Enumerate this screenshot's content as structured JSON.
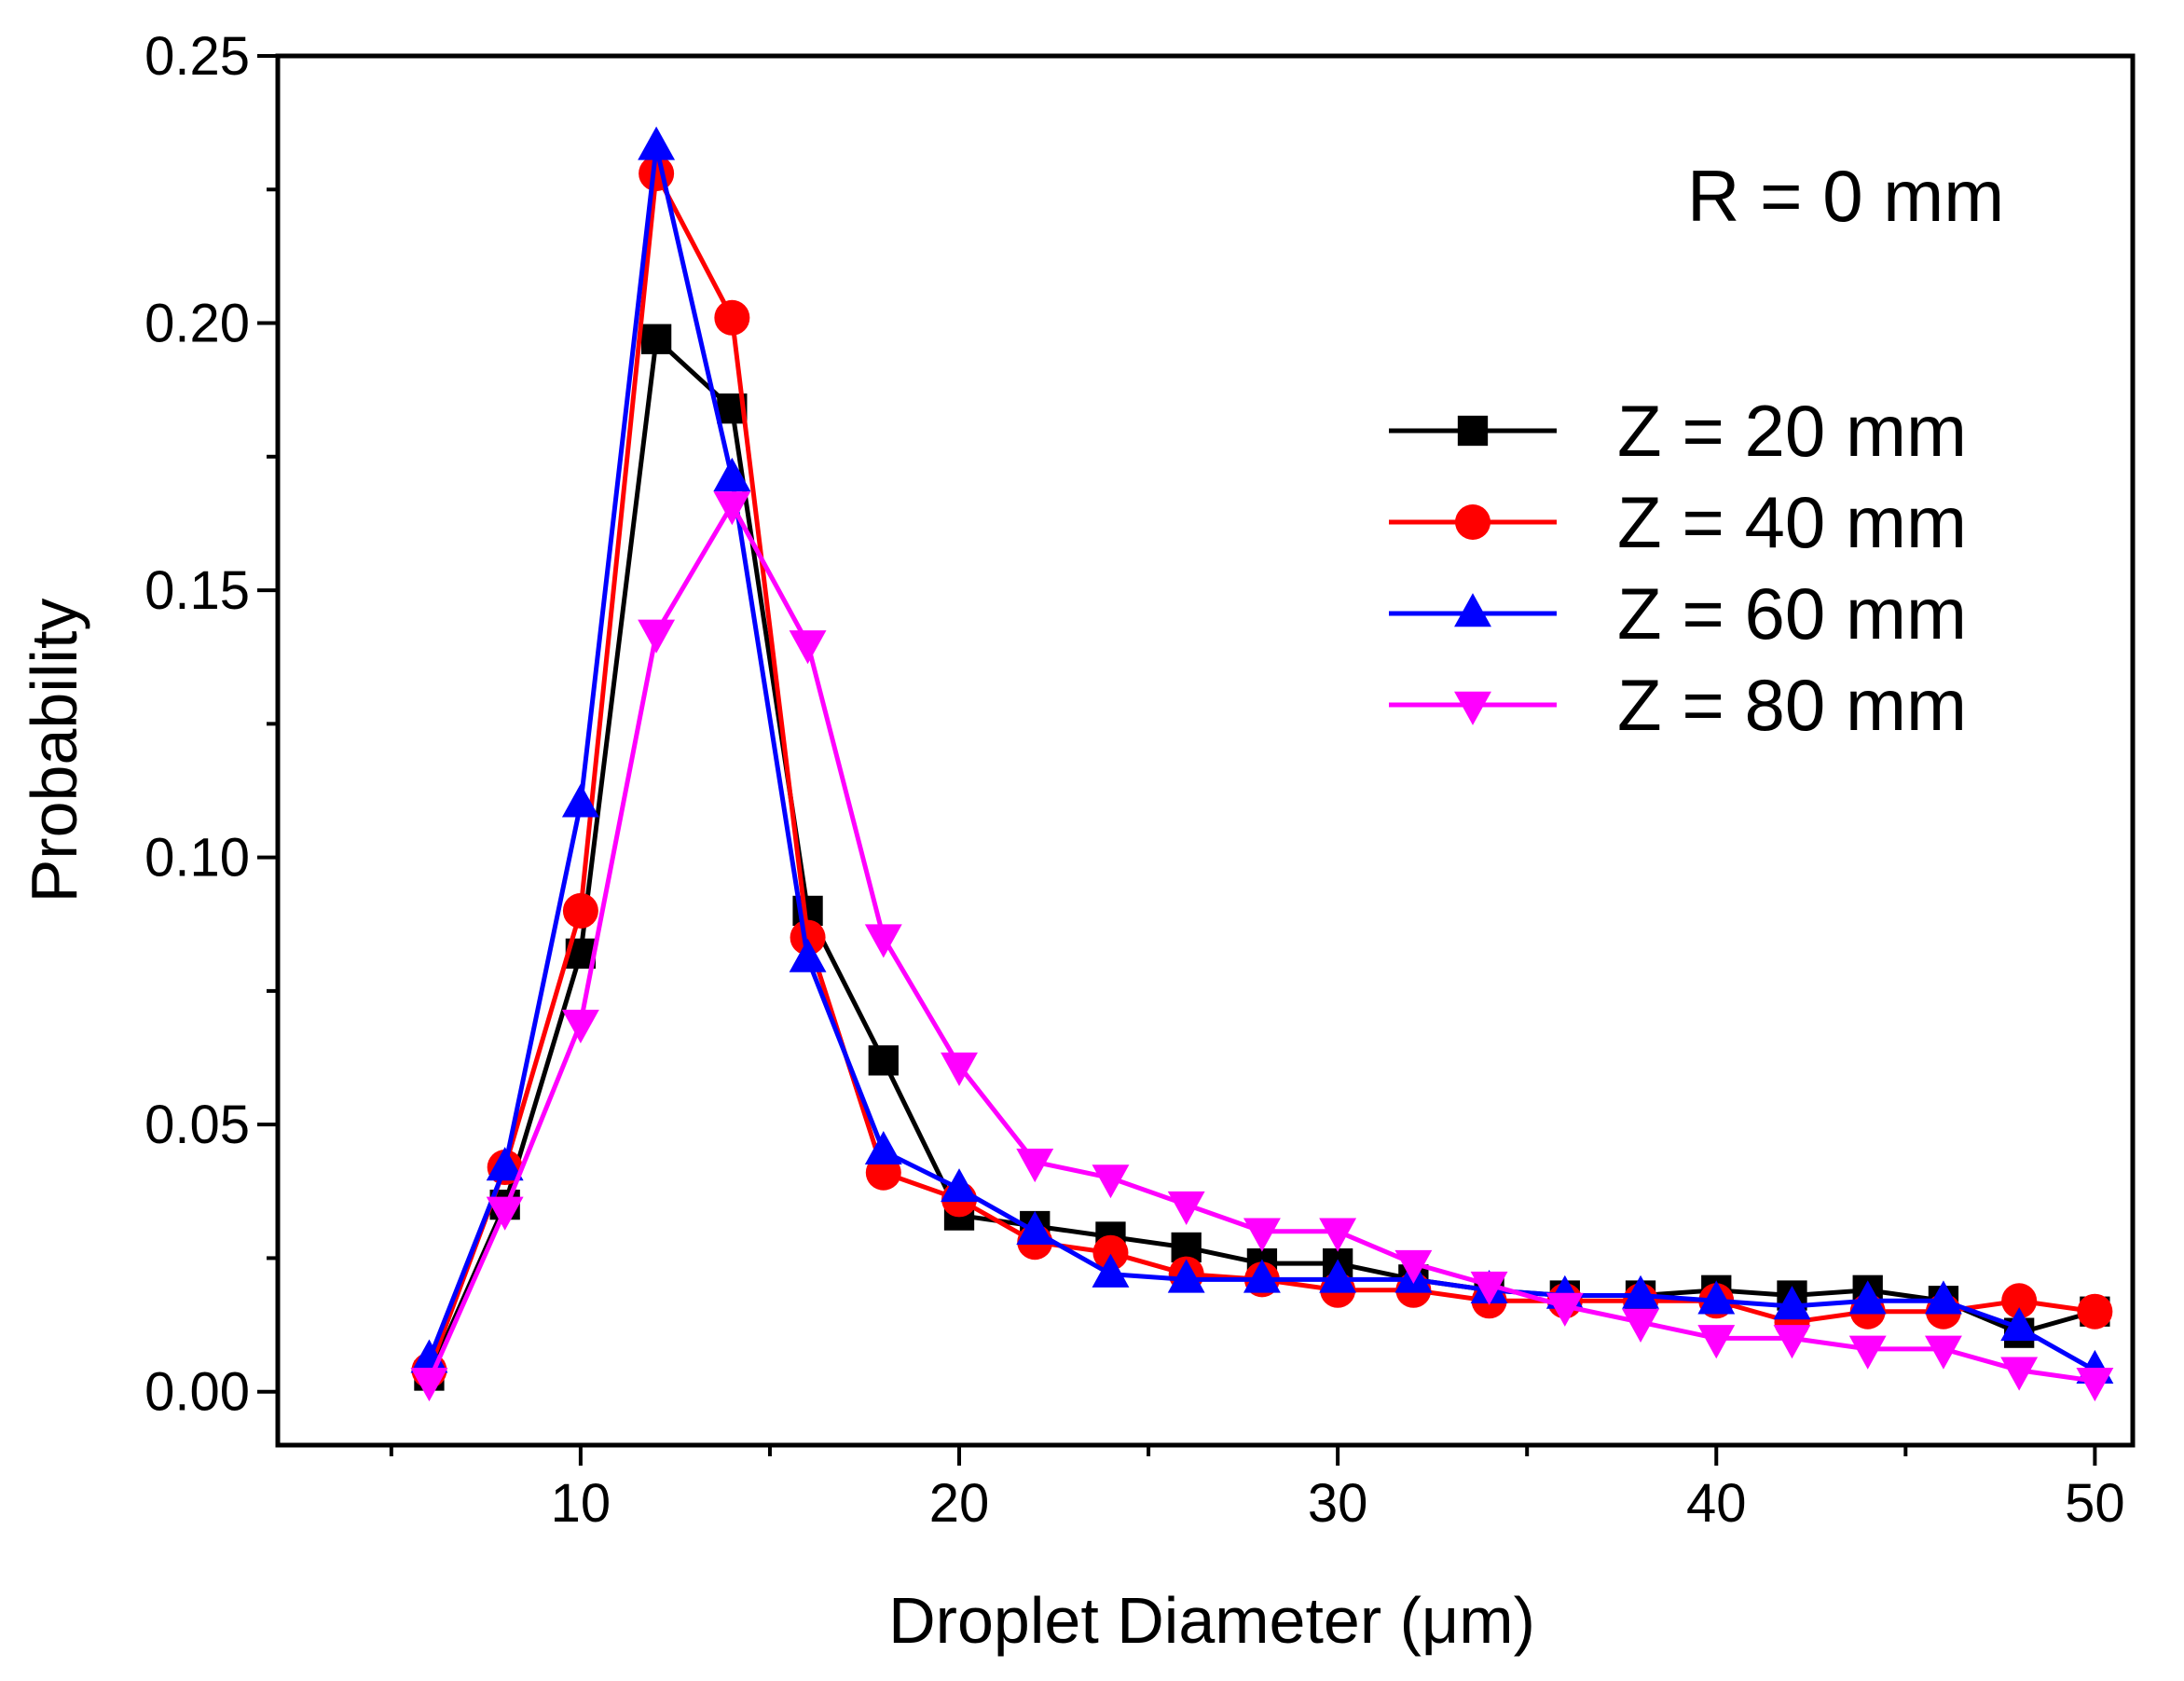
{
  "chart_data": {
    "type": "line",
    "title": "",
    "annotation": "R = 0 mm",
    "xlabel": "Droplet Diameter (μm)",
    "ylabel": "Probability",
    "xlim": [
      2,
      51
    ],
    "ylim": [
      -0.01,
      0.25
    ],
    "xticks": [
      10,
      20,
      30,
      40,
      50
    ],
    "xtick_labels": [
      "10",
      "20",
      "30",
      "40",
      "50"
    ],
    "yticks": [
      0,
      0.05,
      0.1,
      0.15,
      0.2,
      0.25
    ],
    "ytick_labels": [
      "0.00",
      "0.05",
      "0.10",
      "0.15",
      "0.20",
      "0.25"
    ],
    "grid": false,
    "legend_position": "right",
    "x": [
      6,
      8,
      10,
      12,
      14,
      16,
      18,
      20,
      22,
      24,
      26,
      28,
      30,
      32,
      34,
      36,
      38,
      40,
      42,
      44,
      46,
      48,
      50
    ],
    "series": [
      {
        "name": "Z = 20 mm",
        "color": "#000000",
        "marker": "square",
        "values": [
          0.003,
          0.035,
          0.082,
          0.197,
          0.184,
          0.09,
          0.062,
          0.033,
          0.031,
          0.029,
          0.027,
          0.024,
          0.024,
          0.021,
          0.019,
          0.018,
          0.018,
          0.019,
          0.018,
          0.019,
          0.017,
          0.011,
          0.015
        ]
      },
      {
        "name": "Z = 40 mm",
        "color": "#ff0000",
        "marker": "circle",
        "values": [
          0.004,
          0.042,
          0.09,
          0.228,
          0.201,
          0.085,
          0.041,
          0.036,
          0.028,
          0.026,
          0.022,
          0.021,
          0.019,
          0.019,
          0.017,
          0.017,
          0.017,
          0.017,
          0.013,
          0.015,
          0.015,
          0.017,
          0.015
        ]
      },
      {
        "name": "Z = 60 mm",
        "color": "#0000ff",
        "marker": "triangle-up",
        "values": [
          0.006,
          0.042,
          0.11,
          0.233,
          0.171,
          0.081,
          0.045,
          0.038,
          0.03,
          0.022,
          0.021,
          0.021,
          0.021,
          0.021,
          0.019,
          0.018,
          0.018,
          0.017,
          0.016,
          0.017,
          0.017,
          0.012,
          0.004
        ]
      },
      {
        "name": "Z = 80 mm",
        "color": "#ff00ff",
        "marker": "triangle-down",
        "values": [
          0.002,
          0.034,
          0.069,
          0.142,
          0.166,
          0.14,
          0.085,
          0.061,
          0.043,
          0.04,
          0.035,
          0.03,
          0.03,
          0.024,
          0.02,
          0.016,
          0.013,
          0.01,
          0.01,
          0.008,
          0.008,
          0.004,
          0.002
        ]
      }
    ]
  }
}
